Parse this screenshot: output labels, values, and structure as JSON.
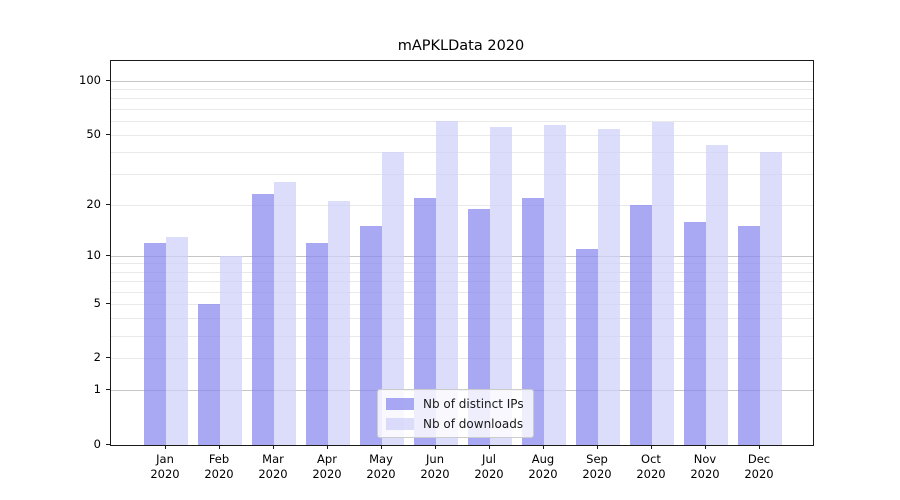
{
  "title": "mAPKLData 2020",
  "chart_data": {
    "type": "bar",
    "title": "mAPKLData 2020",
    "xlabel": "",
    "ylabel": "",
    "scale": "log1p",
    "ylim": [
      0,
      129
    ],
    "grid": true,
    "legend_position": "lower center",
    "categories": [
      "Jan",
      "Feb",
      "Mar",
      "Apr",
      "May",
      "Jun",
      "Jul",
      "Aug",
      "Sep",
      "Oct",
      "Nov",
      "Dec"
    ],
    "category_year": "2020",
    "series": [
      {
        "name": "Nb of distinct IPs",
        "color": "rgba(136,136,238,0.72)",
        "values": [
          12,
          5,
          23,
          12,
          15,
          22,
          19,
          22,
          11,
          20,
          16,
          15
        ]
      },
      {
        "name": "Nb of downloads",
        "color": "rgba(206,206,250,0.72)",
        "values": [
          13,
          10,
          27,
          21,
          40,
          60,
          55,
          57,
          54,
          59,
          44,
          40
        ]
      }
    ],
    "y_tick_labels": [
      0,
      1,
      2,
      5,
      10,
      20,
      50,
      100
    ],
    "y_major_gridlines": [
      1,
      10,
      100
    ],
    "y_minor_gridlines": [
      2,
      3,
      4,
      5,
      6,
      7,
      8,
      9,
      20,
      30,
      40,
      50,
      60,
      70,
      80,
      90
    ]
  },
  "colors": {
    "major_grid": "#c6c6c6",
    "minor_grid": "#e9e9e9",
    "spine": "#1a1a1a",
    "background": "#ffffff"
  }
}
